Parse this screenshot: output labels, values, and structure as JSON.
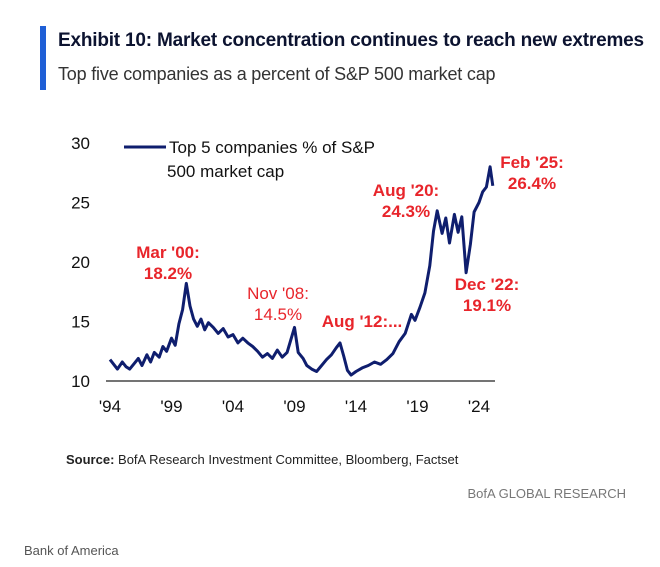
{
  "header": {
    "title": "Exhibit 10: Market concentration continues to reach new extremes",
    "subtitle": "Top five companies as a percent of S&P 500 market cap"
  },
  "footer": {
    "source_label": "Source:",
    "source_text": " BofA Research Investment Committee, Bloomberg, Factset",
    "brand": "BofA GLOBAL RESEARCH",
    "credit": "Bank of America"
  },
  "colors": {
    "line": "#0f1e6e",
    "annotation": "#e8252b",
    "accent": "#1f5fd6"
  },
  "chart_data": {
    "type": "line",
    "legend": {
      "lines": [
        "Top 5 companies % of S&P",
        "500 market cap"
      ],
      "placement": "top-left"
    },
    "xlim": [
      1994,
      2025.3
    ],
    "ylim": [
      10,
      30
    ],
    "xticks": [
      {
        "value": 1994,
        "label": "'94"
      },
      {
        "value": 1999,
        "label": "'99"
      },
      {
        "value": 2004,
        "label": "'04"
      },
      {
        "value": 2009,
        "label": "'09"
      },
      {
        "value": 2014,
        "label": "'14"
      },
      {
        "value": 2019,
        "label": "'19"
      },
      {
        "value": 2024,
        "label": "'24"
      }
    ],
    "yticks": [
      10,
      15,
      20,
      25,
      30
    ],
    "series": [
      {
        "x": [
          1994.0,
          1994.3,
          1994.6,
          1995.0,
          1995.3,
          1995.6,
          1996.0,
          1996.3,
          1996.6,
          1997.0,
          1997.3,
          1997.6,
          1998.0,
          1998.3,
          1998.6,
          1999.0,
          1999.3,
          1999.6,
          1999.9,
          2000.2,
          2000.5,
          2000.8,
          2001.1,
          2001.4,
          2001.7,
          2002.0,
          2002.4,
          2002.8,
          2003.2,
          2003.6,
          2004.0,
          2004.4,
          2004.8,
          2005.2,
          2005.6,
          2006.0,
          2006.4,
          2006.8,
          2007.2,
          2007.6,
          2008.0,
          2008.4,
          2008.8,
          2009.0,
          2009.3,
          2009.7,
          2010.0,
          2010.4,
          2010.8,
          2011.2,
          2011.6,
          2012.0,
          2012.4,
          2012.7,
          2013.0,
          2013.3,
          2013.6,
          2014.0,
          2014.5,
          2015.0,
          2015.5,
          2016.0,
          2016.5,
          2017.0,
          2017.5,
          2018.0,
          2018.5,
          2018.8,
          2019.2,
          2019.6,
          2020.0,
          2020.3,
          2020.6,
          2021.0,
          2021.3,
          2021.6,
          2022.0,
          2022.3,
          2022.6,
          2022.95,
          2023.3,
          2023.6,
          2024.0,
          2024.3,
          2024.6,
          2024.9,
          2025.12
        ],
        "values": [
          11.8,
          11.4,
          11.0,
          11.6,
          11.2,
          11.0,
          11.5,
          11.9,
          11.3,
          12.2,
          11.6,
          12.4,
          12.0,
          12.9,
          12.5,
          13.6,
          13.0,
          14.8,
          16.0,
          18.2,
          16.3,
          15.2,
          14.6,
          15.2,
          14.3,
          14.9,
          14.5,
          14.0,
          14.4,
          13.7,
          13.9,
          13.2,
          13.6,
          13.2,
          12.9,
          12.5,
          12.0,
          12.3,
          11.9,
          12.6,
          12.0,
          12.4,
          13.8,
          14.5,
          12.4,
          11.9,
          11.3,
          11.0,
          10.8,
          11.3,
          11.8,
          12.2,
          12.8,
          13.2,
          12.1,
          10.9,
          10.5,
          10.8,
          11.1,
          11.3,
          11.6,
          11.4,
          11.8,
          12.3,
          13.3,
          14.0,
          15.6,
          15.1,
          16.2,
          17.4,
          19.7,
          22.6,
          24.3,
          22.4,
          23.7,
          21.6,
          24.0,
          22.5,
          23.8,
          19.1,
          21.5,
          24.2,
          25.0,
          25.9,
          26.3,
          28.0,
          26.4
        ]
      }
    ],
    "annotations": [
      {
        "lines": [
          "Mar '00:",
          "18.2%"
        ],
        "style": "bold"
      },
      {
        "lines": [
          "Nov '08:",
          "14.5%"
        ],
        "style": "normal"
      },
      {
        "lines": [
          "Aug '12:..."
        ],
        "style": "bold"
      },
      {
        "lines": [
          "Aug '20:",
          "24.3%"
        ],
        "style": "bold"
      },
      {
        "lines": [
          "Dec '22:",
          "19.1%"
        ],
        "style": "bold"
      },
      {
        "lines": [
          "Feb '25:",
          "26.4%"
        ],
        "style": "bold"
      }
    ]
  }
}
